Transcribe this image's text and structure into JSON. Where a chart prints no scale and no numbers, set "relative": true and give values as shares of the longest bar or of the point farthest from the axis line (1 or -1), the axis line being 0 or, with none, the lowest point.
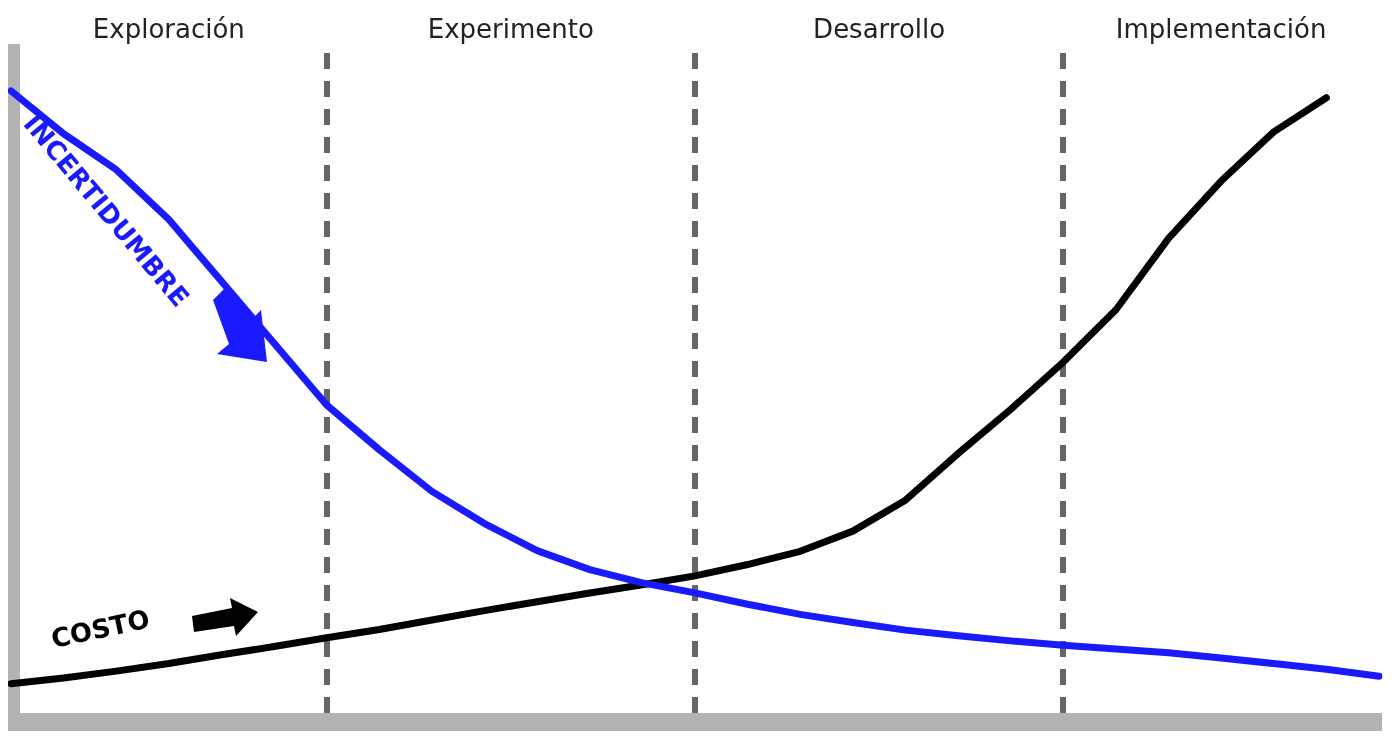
{
  "chart_data": {
    "type": "line",
    "relative": true,
    "marker": "none",
    "line_style": "solid",
    "categories": [
      null,
      null,
      null,
      null,
      null,
      null,
      null,
      null,
      null,
      null,
      null,
      null,
      null,
      null,
      null,
      null,
      null,
      null,
      null,
      null,
      null,
      null,
      null,
      null,
      null,
      null,
      null
    ],
    "series": [
      {
        "name": "INCERTIDUMBRE",
        "color": "#1a1aff",
        "values": [
          1.0,
          0.932,
          0.875,
          0.796,
          0.698,
          0.6,
          0.502,
          0.431,
          0.365,
          0.314,
          0.271,
          0.241,
          0.22,
          0.204,
          0.186,
          0.17,
          0.157,
          0.145,
          0.136,
          0.128,
          0.121,
          0.115,
          0.109,
          0.101,
          0.092,
          0.083,
          0.072
        ]
      },
      {
        "name": "COSTO",
        "color": "#000000",
        "values": [
          0.06,
          0.069,
          0.08,
          0.092,
          0.106,
          0.119,
          0.133,
          0.146,
          0.161,
          0.176,
          0.19,
          0.204,
          0.217,
          0.231,
          0.249,
          0.27,
          0.302,
          0.351,
          0.425,
          0.495,
          0.57,
          0.653,
          0.766,
          0.857,
          0.935,
          0.989,
          null
        ]
      }
    ],
    "grid": "x",
    "annotations": [
      "Exploración",
      "Experimento",
      "Desarrollo",
      "Implementación"
    ]
  }
}
